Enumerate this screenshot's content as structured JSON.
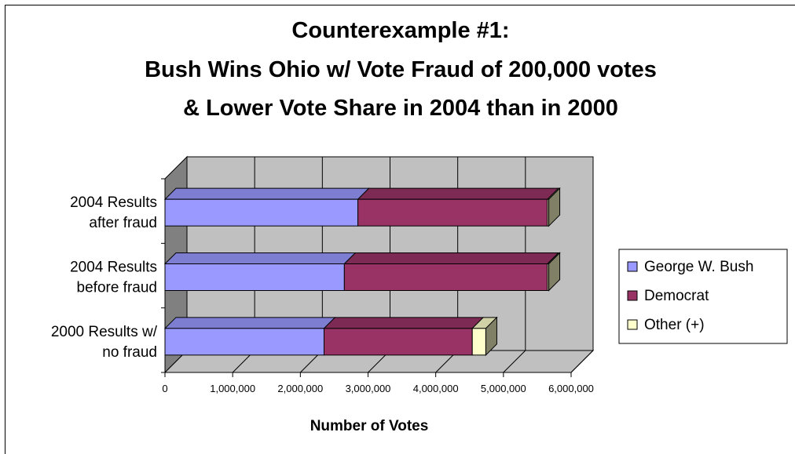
{
  "chart_data": {
    "type": "bar",
    "orientation": "horizontal",
    "stacked": true,
    "three_d": true,
    "title_lines": [
      "Counterexample #1:",
      "Bush Wins Ohio w/ Vote Fraud of 200,000 votes",
      "& Lower Vote Share in 2004 than in 2000"
    ],
    "xlabel": "Number of Votes",
    "ylabel": "",
    "xlim": [
      0,
      6000000
    ],
    "x_ticks": [
      "0",
      "1,000,000",
      "2,000,000",
      "3,000,000",
      "4,000,000",
      "5,000,000",
      "6,000,000"
    ],
    "categories": [
      [
        "2004 Results",
        "after fraud"
      ],
      [
        "2004 Results",
        "before fraud"
      ],
      [
        "2000 Results w/",
        "no fraud"
      ]
    ],
    "series": [
      {
        "name": "George W. Bush",
        "color": "#9999ff",
        "values": [
          2850000,
          2650000,
          2350000
        ]
      },
      {
        "name": "Democrat",
        "color": "#993366",
        "values": [
          2800000,
          3000000,
          2190000
        ]
      },
      {
        "name": "Other (+)",
        "color": "#ffffcc",
        "values": [
          20000,
          20000,
          200000
        ]
      }
    ],
    "grid": true,
    "legend_position": "right",
    "wall_color": "#c0c0c0",
    "side_wall_color": "#808080"
  }
}
